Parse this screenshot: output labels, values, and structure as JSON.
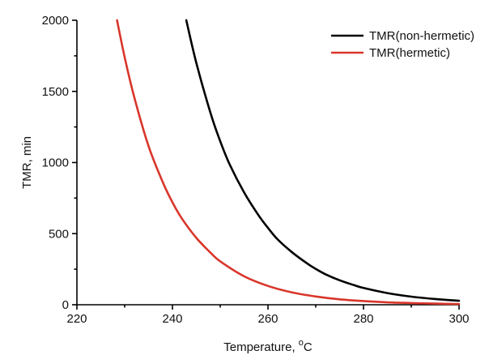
{
  "chart_data": {
    "type": "line",
    "title": "",
    "xlabel": "Temperature, ",
    "xlabel_unit": "C",
    "xlabel_unit_superscript": "o",
    "ylabel": "TMR, min",
    "xlim": [
      220,
      300
    ],
    "ylim": [
      0,
      2000
    ],
    "xticks": [
      "220",
      "240",
      "260",
      "280",
      "300"
    ],
    "yticks": [
      "0",
      "500",
      "1000",
      "1500",
      "2000"
    ],
    "grid": false,
    "legend_position": "top-right",
    "series": [
      {
        "name": "TMR(non-hermetic)",
        "color": "#000000",
        "x": [
          242.9,
          245,
          248,
          250,
          252,
          255,
          258,
          260,
          262,
          265,
          268,
          270,
          272,
          275,
          278,
          280,
          285,
          290,
          295,
          300
        ],
        "y": [
          2000,
          1700,
          1345,
          1150,
          985,
          790,
          630,
          540,
          460,
          370,
          295,
          252,
          215,
          172,
          138,
          118,
          82,
          57,
          40,
          28
        ]
      },
      {
        "name": "TMR(hermetic)",
        "color": "#d9362b",
        "x": [
          228.4,
          230,
          232,
          235,
          238,
          240,
          242,
          245,
          248,
          250,
          255,
          260,
          265,
          270,
          275,
          280,
          285,
          290,
          295,
          300
        ],
        "y": [
          2000,
          1740,
          1460,
          1115,
          860,
          720,
          605,
          470,
          365,
          305,
          200,
          132,
          87,
          58,
          38,
          26,
          17,
          12,
          8,
          5
        ]
      }
    ]
  }
}
